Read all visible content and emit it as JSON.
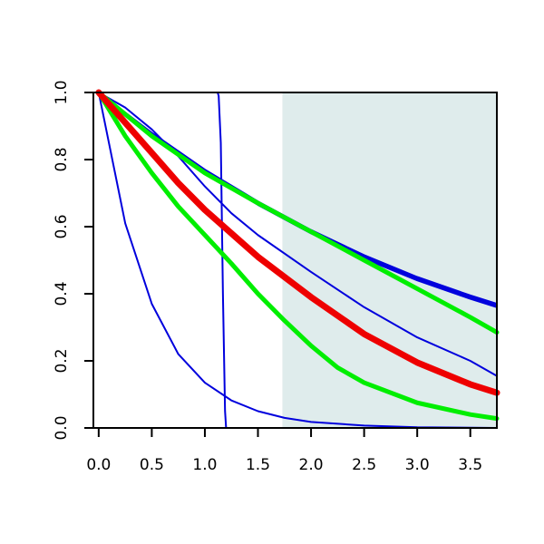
{
  "chart_data": {
    "type": "line",
    "title": "",
    "xlabel": "",
    "ylabel": "",
    "xlim": [
      -0.05,
      3.75
    ],
    "ylim": [
      0.0,
      1.0
    ],
    "x_ticks": [
      0.0,
      0.5,
      1.0,
      1.5,
      2.0,
      2.5,
      3.0,
      3.5
    ],
    "x_tick_labels": [
      "0.0",
      "0.5",
      "1.0",
      "1.5",
      "2.0",
      "2.5",
      "3.0",
      "3.5"
    ],
    "y_ticks": [
      0.0,
      0.2,
      0.4,
      0.6,
      0.8,
      1.0
    ],
    "y_tick_labels": [
      "0.0",
      "0.2",
      "0.4",
      "0.6",
      "0.8",
      "1.0"
    ],
    "grid": false,
    "legend": "none",
    "shaded_region": {
      "x_from": 1.73,
      "x_to": 3.75,
      "color": "#dfecec"
    },
    "series": [
      {
        "color": "#0000dd",
        "width": "thin",
        "points": [
          [
            0.0,
            1.0
          ],
          [
            0.25,
            0.61
          ],
          [
            0.5,
            0.37
          ],
          [
            0.75,
            0.22
          ],
          [
            1.0,
            0.135
          ],
          [
            1.25,
            0.082
          ],
          [
            1.5,
            0.05
          ],
          [
            1.75,
            0.03
          ],
          [
            2.0,
            0.018
          ],
          [
            2.5,
            0.007
          ],
          [
            3.0,
            0.002
          ],
          [
            3.75,
            0.0
          ]
        ]
      },
      {
        "color": "#0000dd",
        "width": "thin",
        "points": [
          [
            0.0,
            1.0
          ],
          [
            1.0,
            1.0
          ],
          [
            1.12,
            1.0
          ],
          [
            1.13,
            0.99
          ],
          [
            1.15,
            0.85
          ],
          [
            1.17,
            0.4
          ],
          [
            1.19,
            0.05
          ],
          [
            1.2,
            0.0
          ],
          [
            3.75,
            0.0
          ]
        ]
      },
      {
        "color": "#0000dd",
        "width": "thin",
        "points": [
          [
            0.0,
            1.0
          ],
          [
            0.5,
            0.875
          ],
          [
            1.0,
            0.76
          ],
          [
            1.5,
            0.665
          ],
          [
            2.0,
            0.58
          ],
          [
            2.5,
            0.505
          ],
          [
            3.0,
            0.44
          ],
          [
            3.5,
            0.385
          ],
          [
            3.75,
            0.36
          ]
        ]
      },
      {
        "color": "#0000dd",
        "width": "thin",
        "points": [
          [
            0.0,
            1.0
          ],
          [
            0.5,
            0.878
          ],
          [
            1.0,
            0.765
          ],
          [
            1.5,
            0.67
          ],
          [
            2.0,
            0.585
          ],
          [
            2.5,
            0.51
          ],
          [
            3.0,
            0.445
          ],
          [
            3.5,
            0.39
          ],
          [
            3.75,
            0.365
          ]
        ]
      },
      {
        "color": "#0000dd",
        "width": "thin",
        "points": [
          [
            0.0,
            1.0
          ],
          [
            0.5,
            0.88
          ],
          [
            1.0,
            0.77
          ],
          [
            1.5,
            0.675
          ],
          [
            2.0,
            0.59
          ],
          [
            2.5,
            0.515
          ],
          [
            3.0,
            0.45
          ],
          [
            3.5,
            0.395
          ],
          [
            3.75,
            0.37
          ]
        ]
      },
      {
        "color": "#0000dd",
        "width": "thin",
        "points": [
          [
            0.0,
            1.0
          ],
          [
            0.25,
            0.955
          ],
          [
            0.5,
            0.89
          ],
          [
            0.75,
            0.81
          ],
          [
            1.0,
            0.72
          ],
          [
            1.25,
            0.64
          ],
          [
            1.5,
            0.575
          ],
          [
            2.0,
            0.465
          ],
          [
            2.5,
            0.36
          ],
          [
            3.0,
            0.27
          ],
          [
            3.5,
            0.2
          ],
          [
            3.75,
            0.155
          ]
        ]
      },
      {
        "color": "#00ee00",
        "width": "thick",
        "points": [
          [
            0.0,
            1.0
          ],
          [
            0.5,
            0.87
          ],
          [
            1.0,
            0.76
          ],
          [
            1.5,
            0.67
          ],
          [
            2.0,
            0.585
          ],
          [
            2.5,
            0.5
          ],
          [
            3.0,
            0.415
          ],
          [
            3.5,
            0.33
          ],
          [
            3.75,
            0.285
          ]
        ]
      },
      {
        "color": "#00ee00",
        "width": "thick",
        "points": [
          [
            0.0,
            1.0
          ],
          [
            0.25,
            0.87
          ],
          [
            0.5,
            0.76
          ],
          [
            0.75,
            0.66
          ],
          [
            1.0,
            0.575
          ],
          [
            1.25,
            0.49
          ],
          [
            1.5,
            0.4
          ],
          [
            1.75,
            0.32
          ],
          [
            2.0,
            0.245
          ],
          [
            2.25,
            0.18
          ],
          [
            2.5,
            0.135
          ],
          [
            3.0,
            0.075
          ],
          [
            3.5,
            0.04
          ],
          [
            3.75,
            0.028
          ]
        ]
      },
      {
        "color": "#ee0000",
        "width": "extra-thick",
        "points": [
          [
            0.0,
            1.0
          ],
          [
            0.25,
            0.91
          ],
          [
            0.5,
            0.82
          ],
          [
            0.75,
            0.73
          ],
          [
            1.0,
            0.65
          ],
          [
            1.25,
            0.58
          ],
          [
            1.5,
            0.51
          ],
          [
            2.0,
            0.39
          ],
          [
            2.5,
            0.28
          ],
          [
            3.0,
            0.195
          ],
          [
            3.5,
            0.13
          ],
          [
            3.75,
            0.105
          ]
        ]
      }
    ]
  }
}
